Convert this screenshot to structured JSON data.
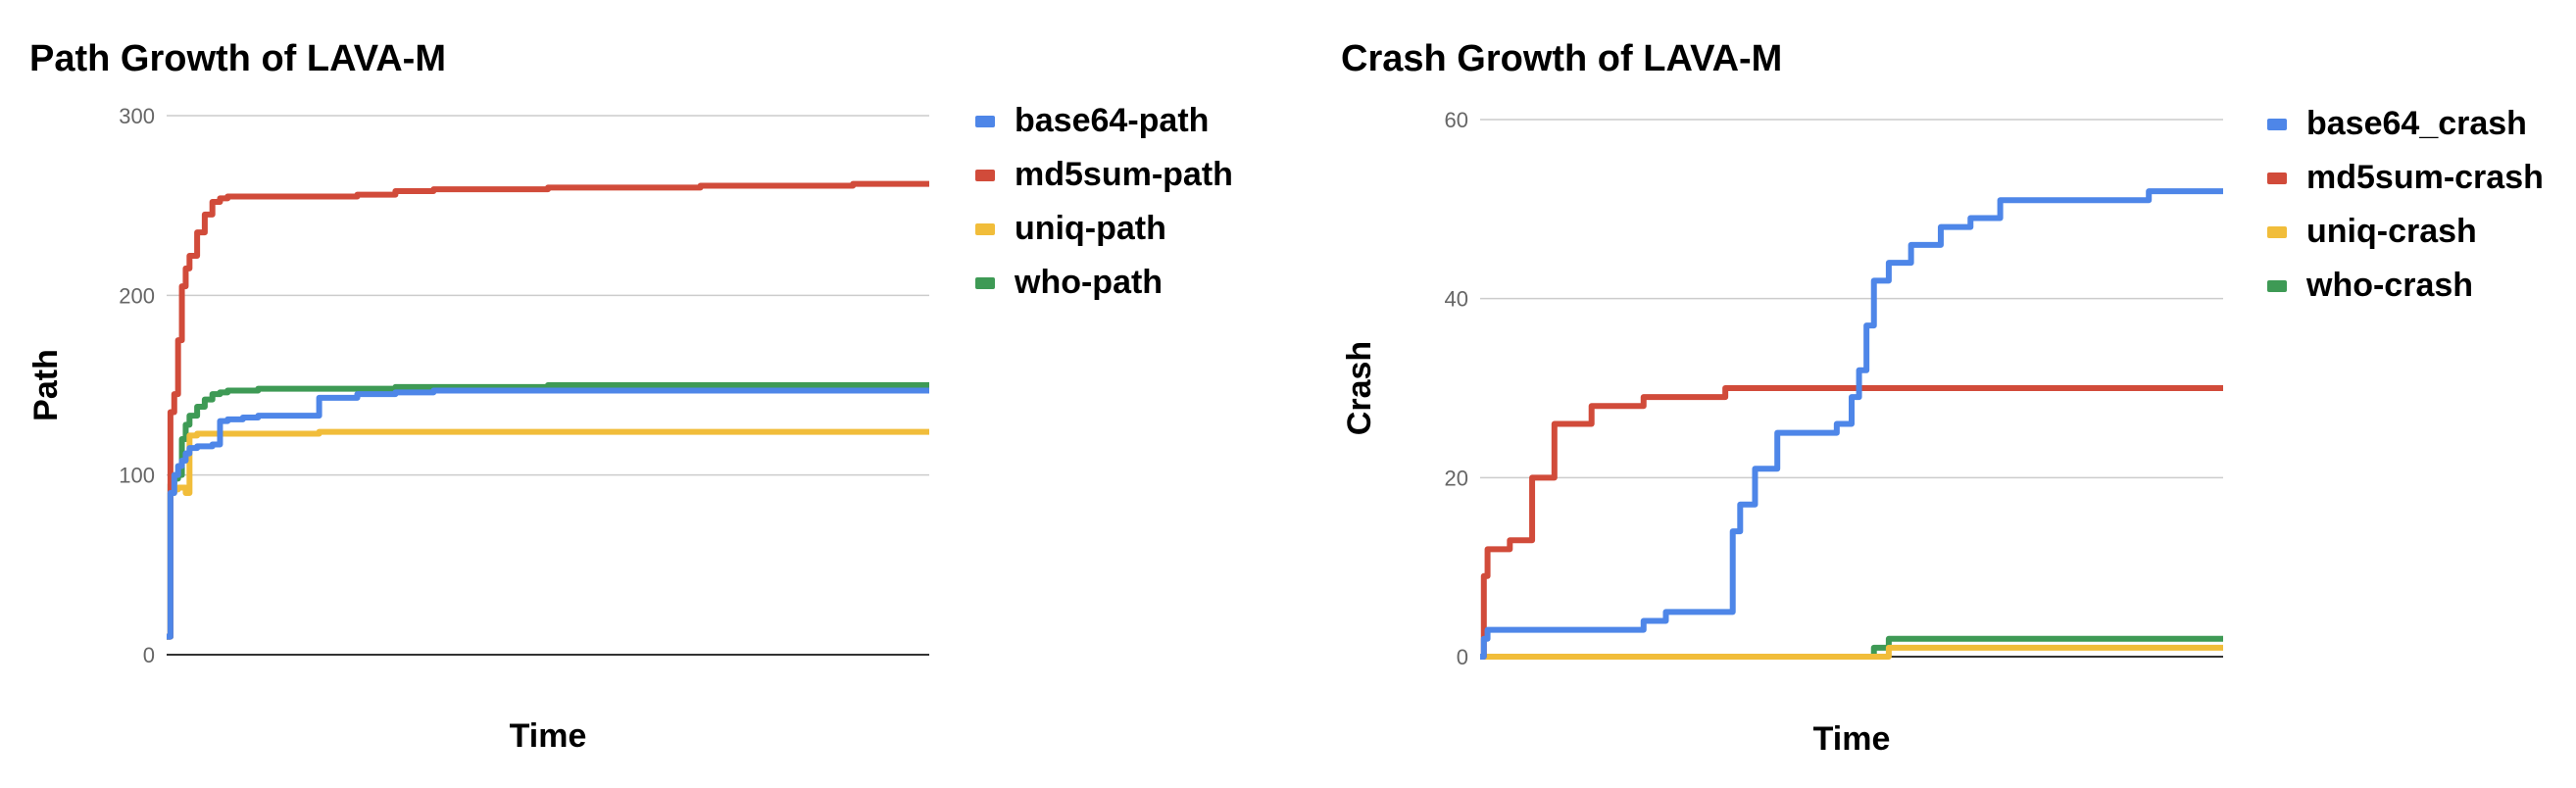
{
  "chart_data": [
    {
      "type": "line",
      "title": "Path Growth of LAVA-M",
      "xlabel": "Time",
      "ylabel": "Path",
      "ylim": [
        0,
        300
      ],
      "yticks": [
        "0",
        "100",
        "200",
        "300"
      ],
      "grid": true,
      "legend_position": "right",
      "x": [
        0,
        0.005,
        0.01,
        0.015,
        0.02,
        0.025,
        0.03,
        0.04,
        0.05,
        0.06,
        0.07,
        0.08,
        0.1,
        0.12,
        0.15,
        0.2,
        0.25,
        0.3,
        0.35,
        0.4,
        0.5,
        0.6,
        0.7,
        0.8,
        0.9,
        1.0
      ],
      "series": [
        {
          "name": "base64-path",
          "color": "#4e86e8",
          "values": [
            10,
            90,
            100,
            105,
            108,
            112,
            115,
            116,
            116,
            117,
            130,
            131,
            132,
            133,
            133,
            143,
            145,
            146,
            147,
            147,
            147,
            147,
            147,
            147,
            147,
            147
          ]
        },
        {
          "name": "md5sum-path",
          "color": "#d14b3a",
          "values": [
            10,
            135,
            145,
            175,
            205,
            215,
            222,
            235,
            245,
            252,
            254,
            255,
            255,
            255,
            255,
            255,
            256,
            258,
            259,
            259,
            260,
            260,
            261,
            261,
            262,
            262
          ]
        },
        {
          "name": "uniq-path",
          "color": "#f1bd3a",
          "values": [
            10,
            90,
            92,
            93,
            93,
            90,
            122,
            123,
            123,
            123,
            123,
            123,
            123,
            123,
            123,
            124,
            124,
            124,
            124,
            124,
            124,
            124,
            124,
            124,
            124,
            124
          ]
        },
        {
          "name": "who-path",
          "color": "#3e9a55",
          "values": [
            10,
            95,
            98,
            100,
            120,
            128,
            133,
            138,
            142,
            145,
            146,
            147,
            147,
            148,
            148,
            148,
            148,
            149,
            149,
            149,
            150,
            150,
            150,
            150,
            150,
            150
          ]
        }
      ]
    },
    {
      "type": "line",
      "title": "Crash Growth of LAVA-M",
      "xlabel": "Time",
      "ylabel": "Crash",
      "ylim": [
        0,
        60
      ],
      "yticks": [
        "0",
        "20",
        "40",
        "60"
      ],
      "grid": true,
      "legend_position": "right",
      "x": [
        0,
        0.005,
        0.01,
        0.02,
        0.04,
        0.07,
        0.1,
        0.15,
        0.2,
        0.22,
        0.25,
        0.3,
        0.33,
        0.34,
        0.35,
        0.37,
        0.4,
        0.44,
        0.48,
        0.5,
        0.51,
        0.52,
        0.53,
        0.55,
        0.58,
        0.62,
        0.66,
        0.7,
        0.8,
        0.9,
        1.0
      ],
      "series": [
        {
          "name": "base64_crash",
          "color": "#4e86e8",
          "values": [
            0,
            2,
            3,
            3,
            3,
            3,
            3,
            3,
            3,
            4,
            5,
            5,
            5,
            14,
            17,
            21,
            25,
            25,
            26,
            29,
            32,
            37,
            42,
            44,
            46,
            48,
            49,
            51,
            51,
            52,
            52
          ]
        },
        {
          "name": "md5sum-crash",
          "color": "#d14b3a",
          "values": [
            0,
            9,
            12,
            12,
            13,
            20,
            26,
            28,
            28,
            29,
            29,
            29,
            30,
            30,
            30,
            30,
            30,
            30,
            30,
            30,
            30,
            30,
            30,
            30,
            30,
            30,
            30,
            30,
            30,
            30,
            30
          ]
        },
        {
          "name": "uniq-crash",
          "color": "#f1bd3a",
          "values": [
            0,
            0,
            0,
            0,
            0,
            0,
            0,
            0,
            0,
            0,
            0,
            0,
            0,
            0,
            0,
            0,
            0,
            0,
            0,
            0,
            0,
            0,
            0,
            1,
            1,
            1,
            1,
            1,
            1,
            1,
            1
          ]
        },
        {
          "name": "who-crash",
          "color": "#3e9a55",
          "values": [
            0,
            0,
            0,
            0,
            0,
            0,
            0,
            0,
            0,
            0,
            0,
            0,
            0,
            0,
            0,
            0,
            0,
            0,
            0,
            0,
            0,
            0,
            1,
            2,
            2,
            2,
            2,
            2,
            2,
            2,
            2
          ]
        }
      ]
    }
  ]
}
